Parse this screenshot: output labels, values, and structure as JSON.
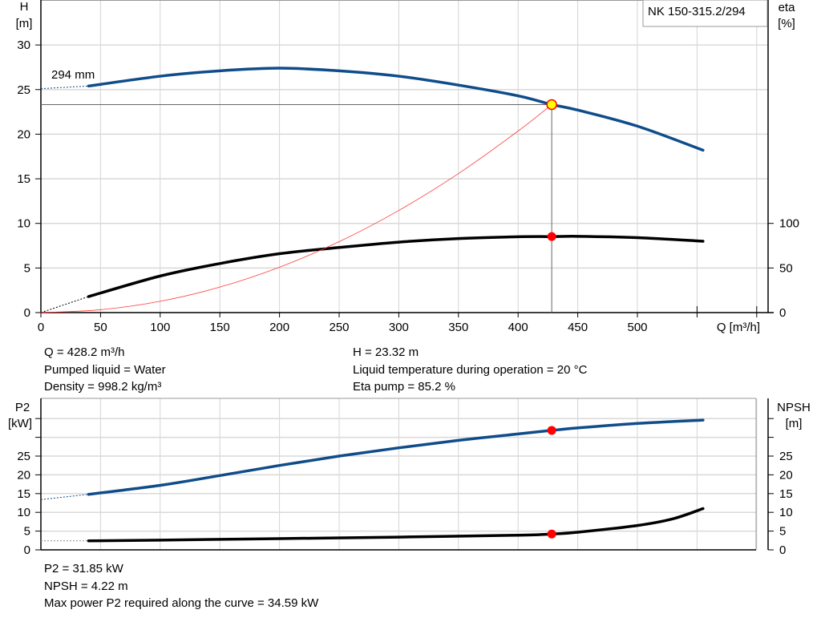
{
  "chart_data": [
    {
      "type": "line",
      "title": "NK 150-315.2/294",
      "xlabel": "Q [m³/h]",
      "ylabel_left": [
        "H",
        "[m]"
      ],
      "ylabel_right": [
        "eta",
        "[%]"
      ],
      "xlim": [
        0,
        600
      ],
      "ylim_left": [
        0,
        35
      ],
      "ylim_right": [
        0,
        350
      ],
      "x_ticks": [
        "0",
        "50",
        "100",
        "150",
        "200",
        "250",
        "300",
        "350",
        "400",
        "450",
        "500"
      ],
      "y_ticks_left": [
        "0",
        "5",
        "10",
        "15",
        "20",
        "25",
        "30"
      ],
      "y_ticks_right": [
        "0",
        "50",
        "100"
      ],
      "grid": true,
      "annotation": "294 mm",
      "series": [
        {
          "name": "294 mm",
          "axis": "left",
          "color": "#0f4c8a",
          "x": [
            40,
            100,
            150,
            200,
            250,
            300,
            350,
            400,
            428.2,
            450,
            500,
            555
          ],
          "y": [
            25.4,
            26.5,
            27.1,
            27.4,
            27.1,
            26.5,
            25.5,
            24.3,
            23.32,
            22.7,
            20.9,
            18.2
          ],
          "extrapolated": {
            "x": [
              0,
              40
            ],
            "y": [
              25.1,
              25.4
            ]
          }
        },
        {
          "axis": "right",
          "color": "#000000",
          "x": [
            40,
            100,
            150,
            200,
            250,
            300,
            350,
            400,
            428.2,
            450,
            500,
            555
          ],
          "y": [
            18,
            41,
            55,
            66,
            73,
            79,
            83,
            85,
            85.2,
            85.5,
            84,
            80
          ],
          "extrapolated": {
            "x": [
              0,
              40
            ],
            "y": [
              0,
              18
            ]
          }
        },
        {
          "axis": "left",
          "color": "#ff3b3b",
          "kind": "system-curve",
          "x": [
            0,
            50,
            100,
            150,
            200,
            250,
            300,
            350,
            400,
            428.2
          ],
          "y": [
            0,
            0.32,
            1.27,
            2.86,
            5.09,
            7.95,
            11.45,
            15.58,
            20.35,
            23.32
          ]
        }
      ],
      "duty_point": {
        "Q": 428.2,
        "H": 23.32,
        "eta": 85.2
      }
    },
    {
      "type": "line",
      "ylabel_left": [
        "P2",
        "[kW]"
      ],
      "ylabel_right": [
        "NPSH",
        "[m]"
      ],
      "xlim": [
        0,
        600
      ],
      "ylim": [
        0,
        38
      ],
      "y_ticks": [
        "0",
        "5",
        "10",
        "15",
        "20",
        "25"
      ],
      "grid": true,
      "series": [
        {
          "axis": "left",
          "color": "#0f4c8a",
          "x": [
            40,
            100,
            150,
            200,
            250,
            300,
            350,
            400,
            428.2,
            450,
            500,
            555
          ],
          "y": [
            14.8,
            17.2,
            19.8,
            22.5,
            25,
            27.2,
            29.2,
            30.9,
            31.85,
            32.5,
            33.7,
            34.59
          ],
          "extrapolated": {
            "x": [
              0,
              40
            ],
            "y": [
              13.4,
              14.8
            ]
          }
        },
        {
          "axis": "right",
          "color": "#000000",
          "x": [
            40,
            100,
            200,
            300,
            400,
            428.2,
            450,
            500,
            530,
            555
          ],
          "y": [
            2.4,
            2.6,
            3.0,
            3.4,
            3.9,
            4.22,
            4.7,
            6.5,
            8.3,
            11
          ],
          "extrapolated": {
            "x": [
              0,
              40
            ],
            "y": [
              2.4,
              2.4
            ]
          }
        }
      ],
      "duty_point": {
        "Q": 428.2,
        "P2": 31.85,
        "NPSH": 4.22
      }
    }
  ],
  "info_top": {
    "left": [
      "Q = 428.2 m³/h",
      "Pumped liquid = Water",
      "Density = 998.2 kg/m³"
    ],
    "right": [
      "H = 23.32 m",
      "Liquid temperature during operation = 20 °C",
      "Eta pump = 85.2 %"
    ]
  },
  "info_bottom": [
    "P2 = 31.85 kW",
    "NPSH = 4.22 m",
    "Max power P2 required along the curve = 34.59 kW"
  ]
}
